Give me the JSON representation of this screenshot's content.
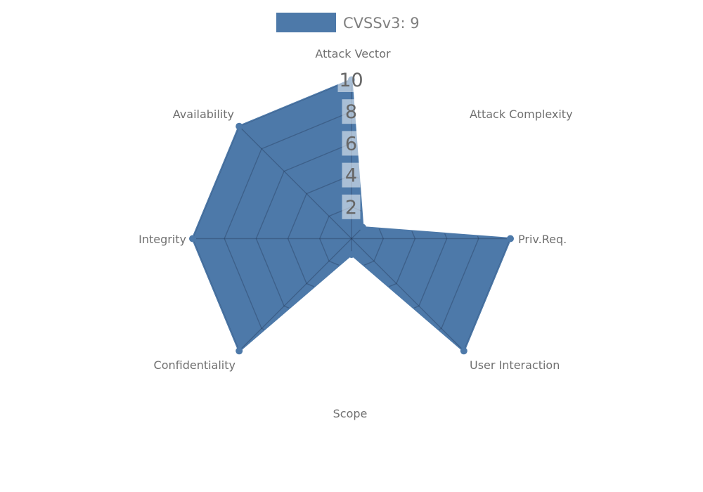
{
  "chart_data": {
    "type": "radar",
    "title": "",
    "legend": [
      {
        "label": "CVSSv3: 9",
        "color": "#4d79a9"
      }
    ],
    "legend_position": "top-center",
    "axes": [
      "Attack Vector",
      "Attack Complexity",
      "Priv.Req.",
      "User Interaction",
      "Scope",
      "Confidentiality",
      "Integrity",
      "Availability"
    ],
    "series": [
      {
        "name": "CVSSv3: 9",
        "values": [
          10,
          1,
          10,
          10,
          1,
          10,
          10,
          10
        ]
      }
    ],
    "scale": {
      "min": 0,
      "max": 10,
      "ring_step": 2,
      "tick_labels": [
        "2",
        "4",
        "6",
        "8",
        "10"
      ]
    },
    "layout_hints": {
      "grid": "spider-web, visible only inside filled polygon",
      "rings": 5,
      "spokes": 8
    },
    "colors": {
      "fill": "#4d79a9",
      "grid_inside": "rgba(25, 40, 65, 0.30)",
      "axis_label": "#707070",
      "tick_text": "#666666",
      "tick_bg": "rgba(255, 255, 255, 0.52)",
      "legend_text": "#7f7f7f",
      "background": "#ffffff"
    }
  }
}
